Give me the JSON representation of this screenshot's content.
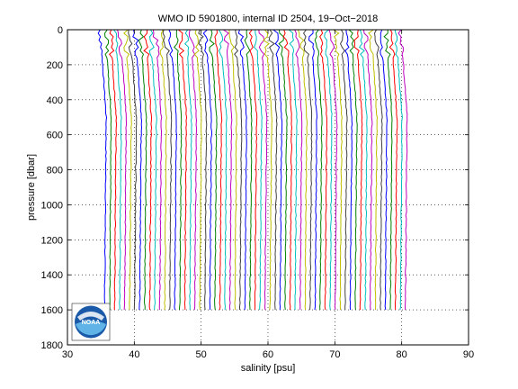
{
  "chart_data": {
    "type": "line",
    "title": "WMO ID 5901800, internal ID 2504, 19−Oct−2018",
    "xlabel": "salinity [psu]",
    "ylabel": "pressure [dbar]",
    "xlim": [
      30,
      90
    ],
    "ylim": [
      0,
      1800
    ],
    "y_reversed": true,
    "grid": true,
    "xticks": [
      "30",
      "40",
      "50",
      "60",
      "70",
      "80",
      "90"
    ],
    "yticks": [
      "0",
      "200",
      "400",
      "600",
      "800",
      "1000",
      "1200",
      "1400",
      "1600",
      "1800"
    ],
    "profiles": {
      "count": 61,
      "first_offset_psu": 35.0,
      "offset_step_psu": 0.75,
      "max_pressure_dbar": 1600,
      "colors": [
        "#0000ff",
        "#008000",
        "#ff0000",
        "#00bfbf",
        "#bf00bf",
        "#bfbf00",
        "#404040"
      ]
    },
    "logo": {
      "name": "noaa-logo",
      "text": "NOAA"
    }
  }
}
